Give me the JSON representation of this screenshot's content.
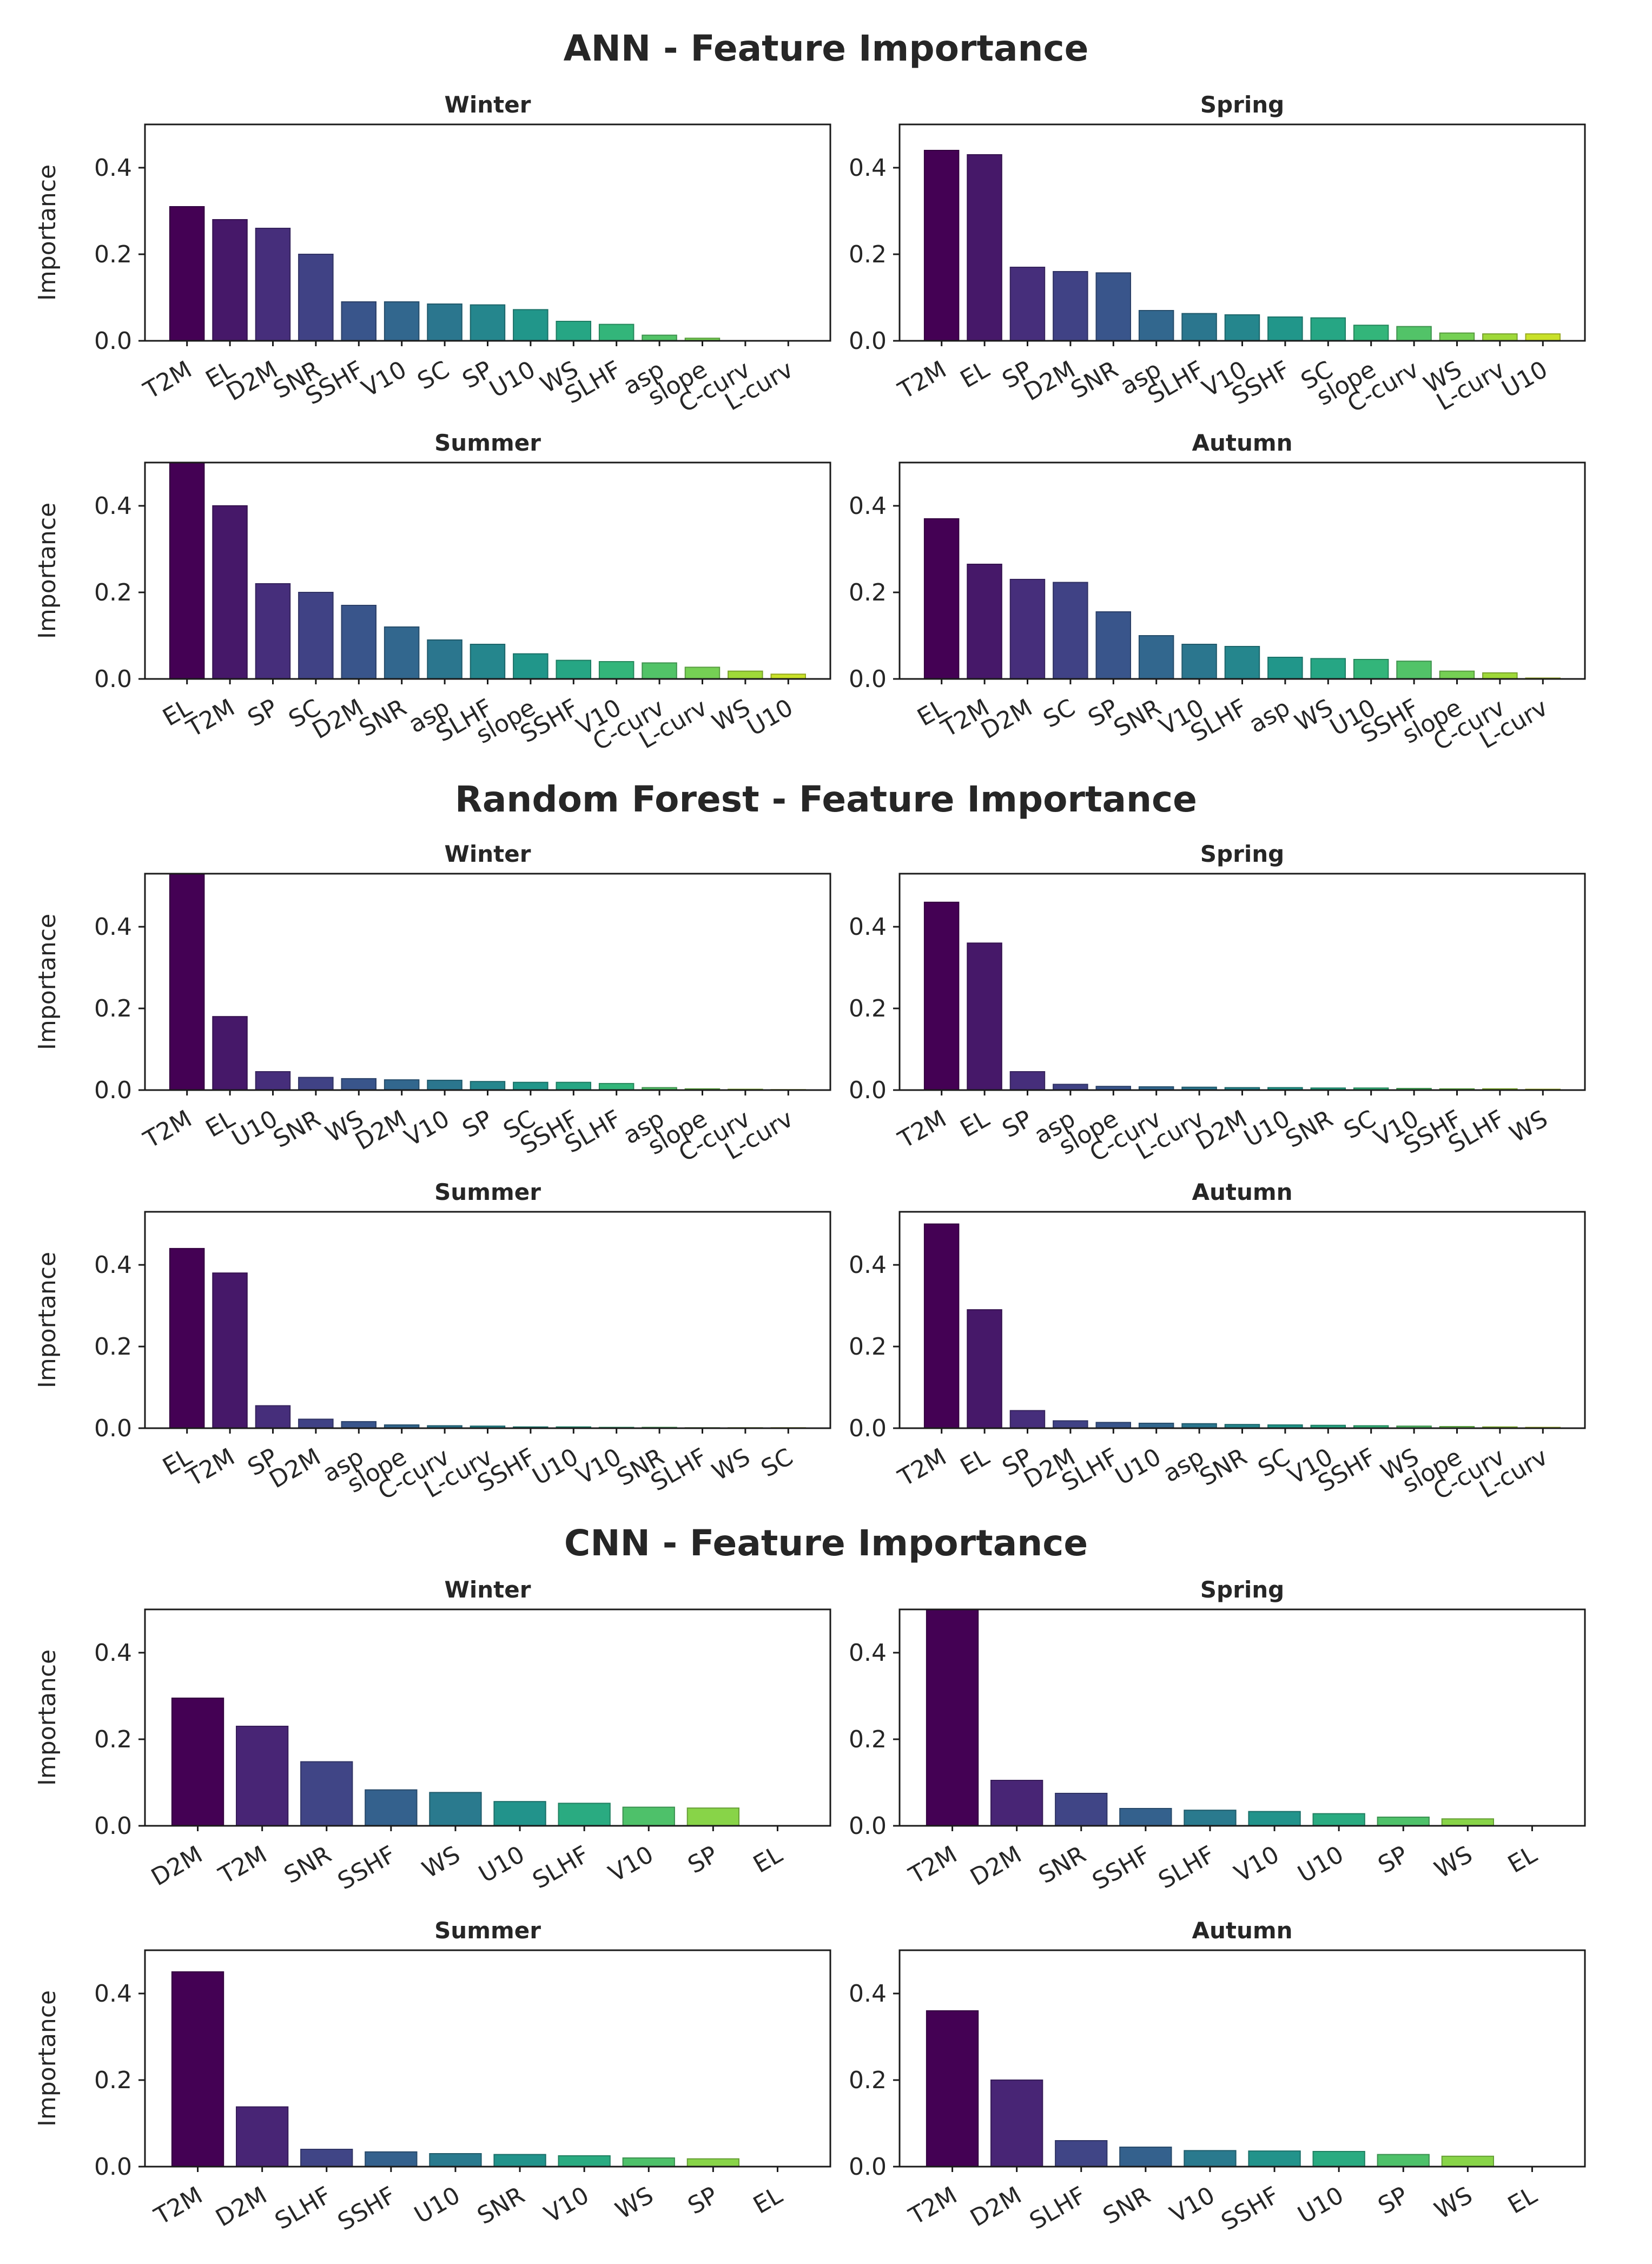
{
  "chart_data": [
    {
      "type": "bar",
      "title": "ANN - Feature Importance",
      "ylabel": "Importance",
      "yticks": [
        "0.0",
        "0.2",
        "0.4"
      ],
      "subplots": [
        {
          "title": "Winter",
          "ylim": [
            0,
            0.5
          ],
          "categories": [
            "T2M",
            "EL",
            "D2M",
            "SNR",
            "SSHF",
            "V10",
            "SC",
            "SP",
            "U10",
            "WS",
            "SLHF",
            "asp",
            "slope",
            "C-curv",
            "L-curv"
          ],
          "values": [
            0.31,
            0.28,
            0.26,
            0.2,
            0.09,
            0.09,
            0.085,
            0.083,
            0.072,
            0.045,
            0.038,
            0.013,
            0.006,
            0.0,
            0.0
          ]
        },
        {
          "title": "Spring",
          "ylim": [
            0,
            0.5
          ],
          "categories": [
            "T2M",
            "EL",
            "SP",
            "D2M",
            "SNR",
            "asp",
            "SLHF",
            "V10",
            "SSHF",
            "SC",
            "slope",
            "C-curv",
            "WS",
            "L-curv",
            "U10"
          ],
          "values": [
            0.44,
            0.43,
            0.17,
            0.16,
            0.157,
            0.07,
            0.063,
            0.06,
            0.055,
            0.053,
            0.036,
            0.033,
            0.018,
            0.016,
            0.016
          ]
        },
        {
          "title": "Summer",
          "ylim": [
            0,
            0.5
          ],
          "categories": [
            "EL",
            "T2M",
            "SP",
            "SC",
            "D2M",
            "SNR",
            "asp",
            "SLHF",
            "slope",
            "SSHF",
            "V10",
            "C-curv",
            "L-curv",
            "WS",
            "U10"
          ],
          "values": [
            0.51,
            0.4,
            0.22,
            0.2,
            0.17,
            0.12,
            0.09,
            0.08,
            0.058,
            0.043,
            0.04,
            0.037,
            0.027,
            0.018,
            0.011
          ]
        },
        {
          "title": "Autumn",
          "ylim": [
            0,
            0.5
          ],
          "categories": [
            "EL",
            "T2M",
            "D2M",
            "SC",
            "SP",
            "SNR",
            "V10",
            "SLHF",
            "asp",
            "WS",
            "U10",
            "SSHF",
            "slope",
            "C-curv",
            "L-curv"
          ],
          "values": [
            0.37,
            0.265,
            0.23,
            0.223,
            0.155,
            0.1,
            0.08,
            0.075,
            0.05,
            0.047,
            0.045,
            0.041,
            0.018,
            0.014,
            0.002
          ]
        }
      ]
    },
    {
      "type": "bar",
      "title": "Random Forest - Feature Importance",
      "ylabel": "Importance",
      "yticks": [
        "0.0",
        "0.2",
        "0.4"
      ],
      "subplots": [
        {
          "title": "Winter",
          "ylim": [
            0,
            0.53
          ],
          "categories": [
            "T2M",
            "EL",
            "U10",
            "SNR",
            "WS",
            "D2M",
            "V10",
            "SP",
            "SC",
            "SSHF",
            "SLHF",
            "asp",
            "slope",
            "C-curv",
            "L-curv"
          ],
          "values": [
            0.53,
            0.18,
            0.045,
            0.031,
            0.028,
            0.025,
            0.024,
            0.021,
            0.019,
            0.019,
            0.016,
            0.006,
            0.003,
            0.002,
            0.001
          ]
        },
        {
          "title": "Spring",
          "ylim": [
            0,
            0.53
          ],
          "categories": [
            "T2M",
            "EL",
            "SP",
            "asp",
            "slope",
            "C-curv",
            "L-curv",
            "D2M",
            "U10",
            "SNR",
            "SC",
            "V10",
            "SSHF",
            "SLHF",
            "WS"
          ],
          "values": [
            0.46,
            0.36,
            0.045,
            0.014,
            0.009,
            0.008,
            0.007,
            0.006,
            0.006,
            0.005,
            0.005,
            0.004,
            0.003,
            0.003,
            0.002
          ]
        },
        {
          "title": "Summer",
          "ylim": [
            0,
            0.53
          ],
          "categories": [
            "EL",
            "T2M",
            "SP",
            "D2M",
            "asp",
            "slope",
            "C-curv",
            "L-curv",
            "SSHF",
            "U10",
            "V10",
            "SNR",
            "SLHF",
            "WS",
            "SC"
          ],
          "values": [
            0.44,
            0.38,
            0.055,
            0.022,
            0.016,
            0.008,
            0.006,
            0.005,
            0.003,
            0.003,
            0.002,
            0.002,
            0.001,
            0.001,
            0.001
          ]
        },
        {
          "title": "Autumn",
          "ylim": [
            0,
            0.53
          ],
          "categories": [
            "T2M",
            "EL",
            "SP",
            "D2M",
            "SLHF",
            "U10",
            "asp",
            "SNR",
            "SC",
            "V10",
            "SSHF",
            "WS",
            "slope",
            "C-curv",
            "L-curv"
          ],
          "values": [
            0.5,
            0.29,
            0.043,
            0.018,
            0.014,
            0.012,
            0.011,
            0.009,
            0.008,
            0.007,
            0.006,
            0.005,
            0.004,
            0.003,
            0.002
          ]
        }
      ]
    },
    {
      "type": "bar",
      "title": "CNN - Feature Importance",
      "ylabel": "Importance",
      "yticks": [
        "0.0",
        "0.2",
        "0.4"
      ],
      "subplots": [
        {
          "title": "Winter",
          "ylim": [
            0,
            0.5
          ],
          "categories": [
            "D2M",
            "T2M",
            "SNR",
            "SSHF",
            "WS",
            "U10",
            "SLHF",
            "V10",
            "SP",
            "EL"
          ],
          "values": [
            0.295,
            0.23,
            0.148,
            0.083,
            0.077,
            0.056,
            0.052,
            0.043,
            0.041,
            0.0
          ]
        },
        {
          "title": "Spring",
          "ylim": [
            0,
            0.5
          ],
          "categories": [
            "T2M",
            "D2M",
            "SNR",
            "SSHF",
            "SLHF",
            "V10",
            "U10",
            "SP",
            "WS",
            "EL"
          ],
          "values": [
            0.5,
            0.105,
            0.075,
            0.04,
            0.036,
            0.033,
            0.028,
            0.02,
            0.016,
            0.0
          ]
        },
        {
          "title": "Summer",
          "ylim": [
            0,
            0.5
          ],
          "categories": [
            "T2M",
            "D2M",
            "SLHF",
            "SSHF",
            "U10",
            "SNR",
            "V10",
            "WS",
            "SP",
            "EL"
          ],
          "values": [
            0.45,
            0.138,
            0.04,
            0.034,
            0.03,
            0.028,
            0.025,
            0.02,
            0.018,
            0.0
          ]
        },
        {
          "title": "Autumn",
          "ylim": [
            0,
            0.5
          ],
          "categories": [
            "T2M",
            "D2M",
            "SLHF",
            "SNR",
            "V10",
            "SSHF",
            "U10",
            "SP",
            "WS",
            "EL"
          ],
          "values": [
            0.36,
            0.2,
            0.06,
            0.045,
            0.037,
            0.036,
            0.035,
            0.028,
            0.024,
            0.0
          ]
        }
      ]
    }
  ]
}
